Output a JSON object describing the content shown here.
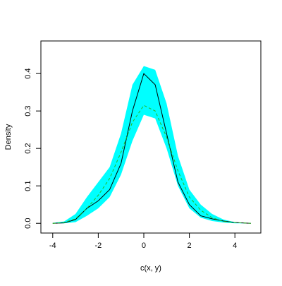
{
  "chart_data": {
    "type": "density-band",
    "xlabel": "c(x, y)",
    "ylabel": "Density",
    "x": [
      -4,
      -3.5,
      -3,
      -2.5,
      -2,
      -1.5,
      -1,
      -0.5,
      0,
      0.5,
      1,
      1.5,
      2,
      2.5,
      3,
      3.5,
      4,
      4.7
    ],
    "band": {
      "color": "#00ffff",
      "lower": [
        0,
        0,
        0.003,
        0.02,
        0.04,
        0.07,
        0.13,
        0.22,
        0.29,
        0.28,
        0.2,
        0.1,
        0.04,
        0.015,
        0.006,
        0.002,
        0,
        0
      ],
      "upper": [
        0.001,
        0.005,
        0.025,
        0.07,
        0.11,
        0.15,
        0.24,
        0.37,
        0.42,
        0.41,
        0.32,
        0.18,
        0.09,
        0.05,
        0.025,
        0.01,
        0.003,
        0
      ]
    },
    "lines": [
      {
        "color": "#000000",
        "dashed": false,
        "values": [
          0,
          0.001,
          0.01,
          0.04,
          0.06,
          0.09,
          0.16,
          0.3,
          0.4,
          0.37,
          0.24,
          0.11,
          0.05,
          0.02,
          0.012,
          0.006,
          0.002,
          0
        ]
      },
      {
        "color": "#22bb22",
        "dashed": true,
        "values": [
          0,
          0.002,
          0.012,
          0.04,
          0.075,
          0.12,
          0.19,
          0.27,
          0.315,
          0.3,
          0.23,
          0.14,
          0.07,
          0.035,
          0.015,
          0.005,
          0.002,
          0
        ]
      }
    ],
    "xlim": [
      -4.52,
      5.14
    ],
    "ylim": [
      -0.026,
      0.487
    ],
    "xticks": [
      -4,
      -2,
      0,
      2,
      4
    ],
    "yticks": [
      {
        "value": 0,
        "label": "0.0"
      },
      0.1,
      0.2,
      0.3,
      0.4
    ]
  }
}
